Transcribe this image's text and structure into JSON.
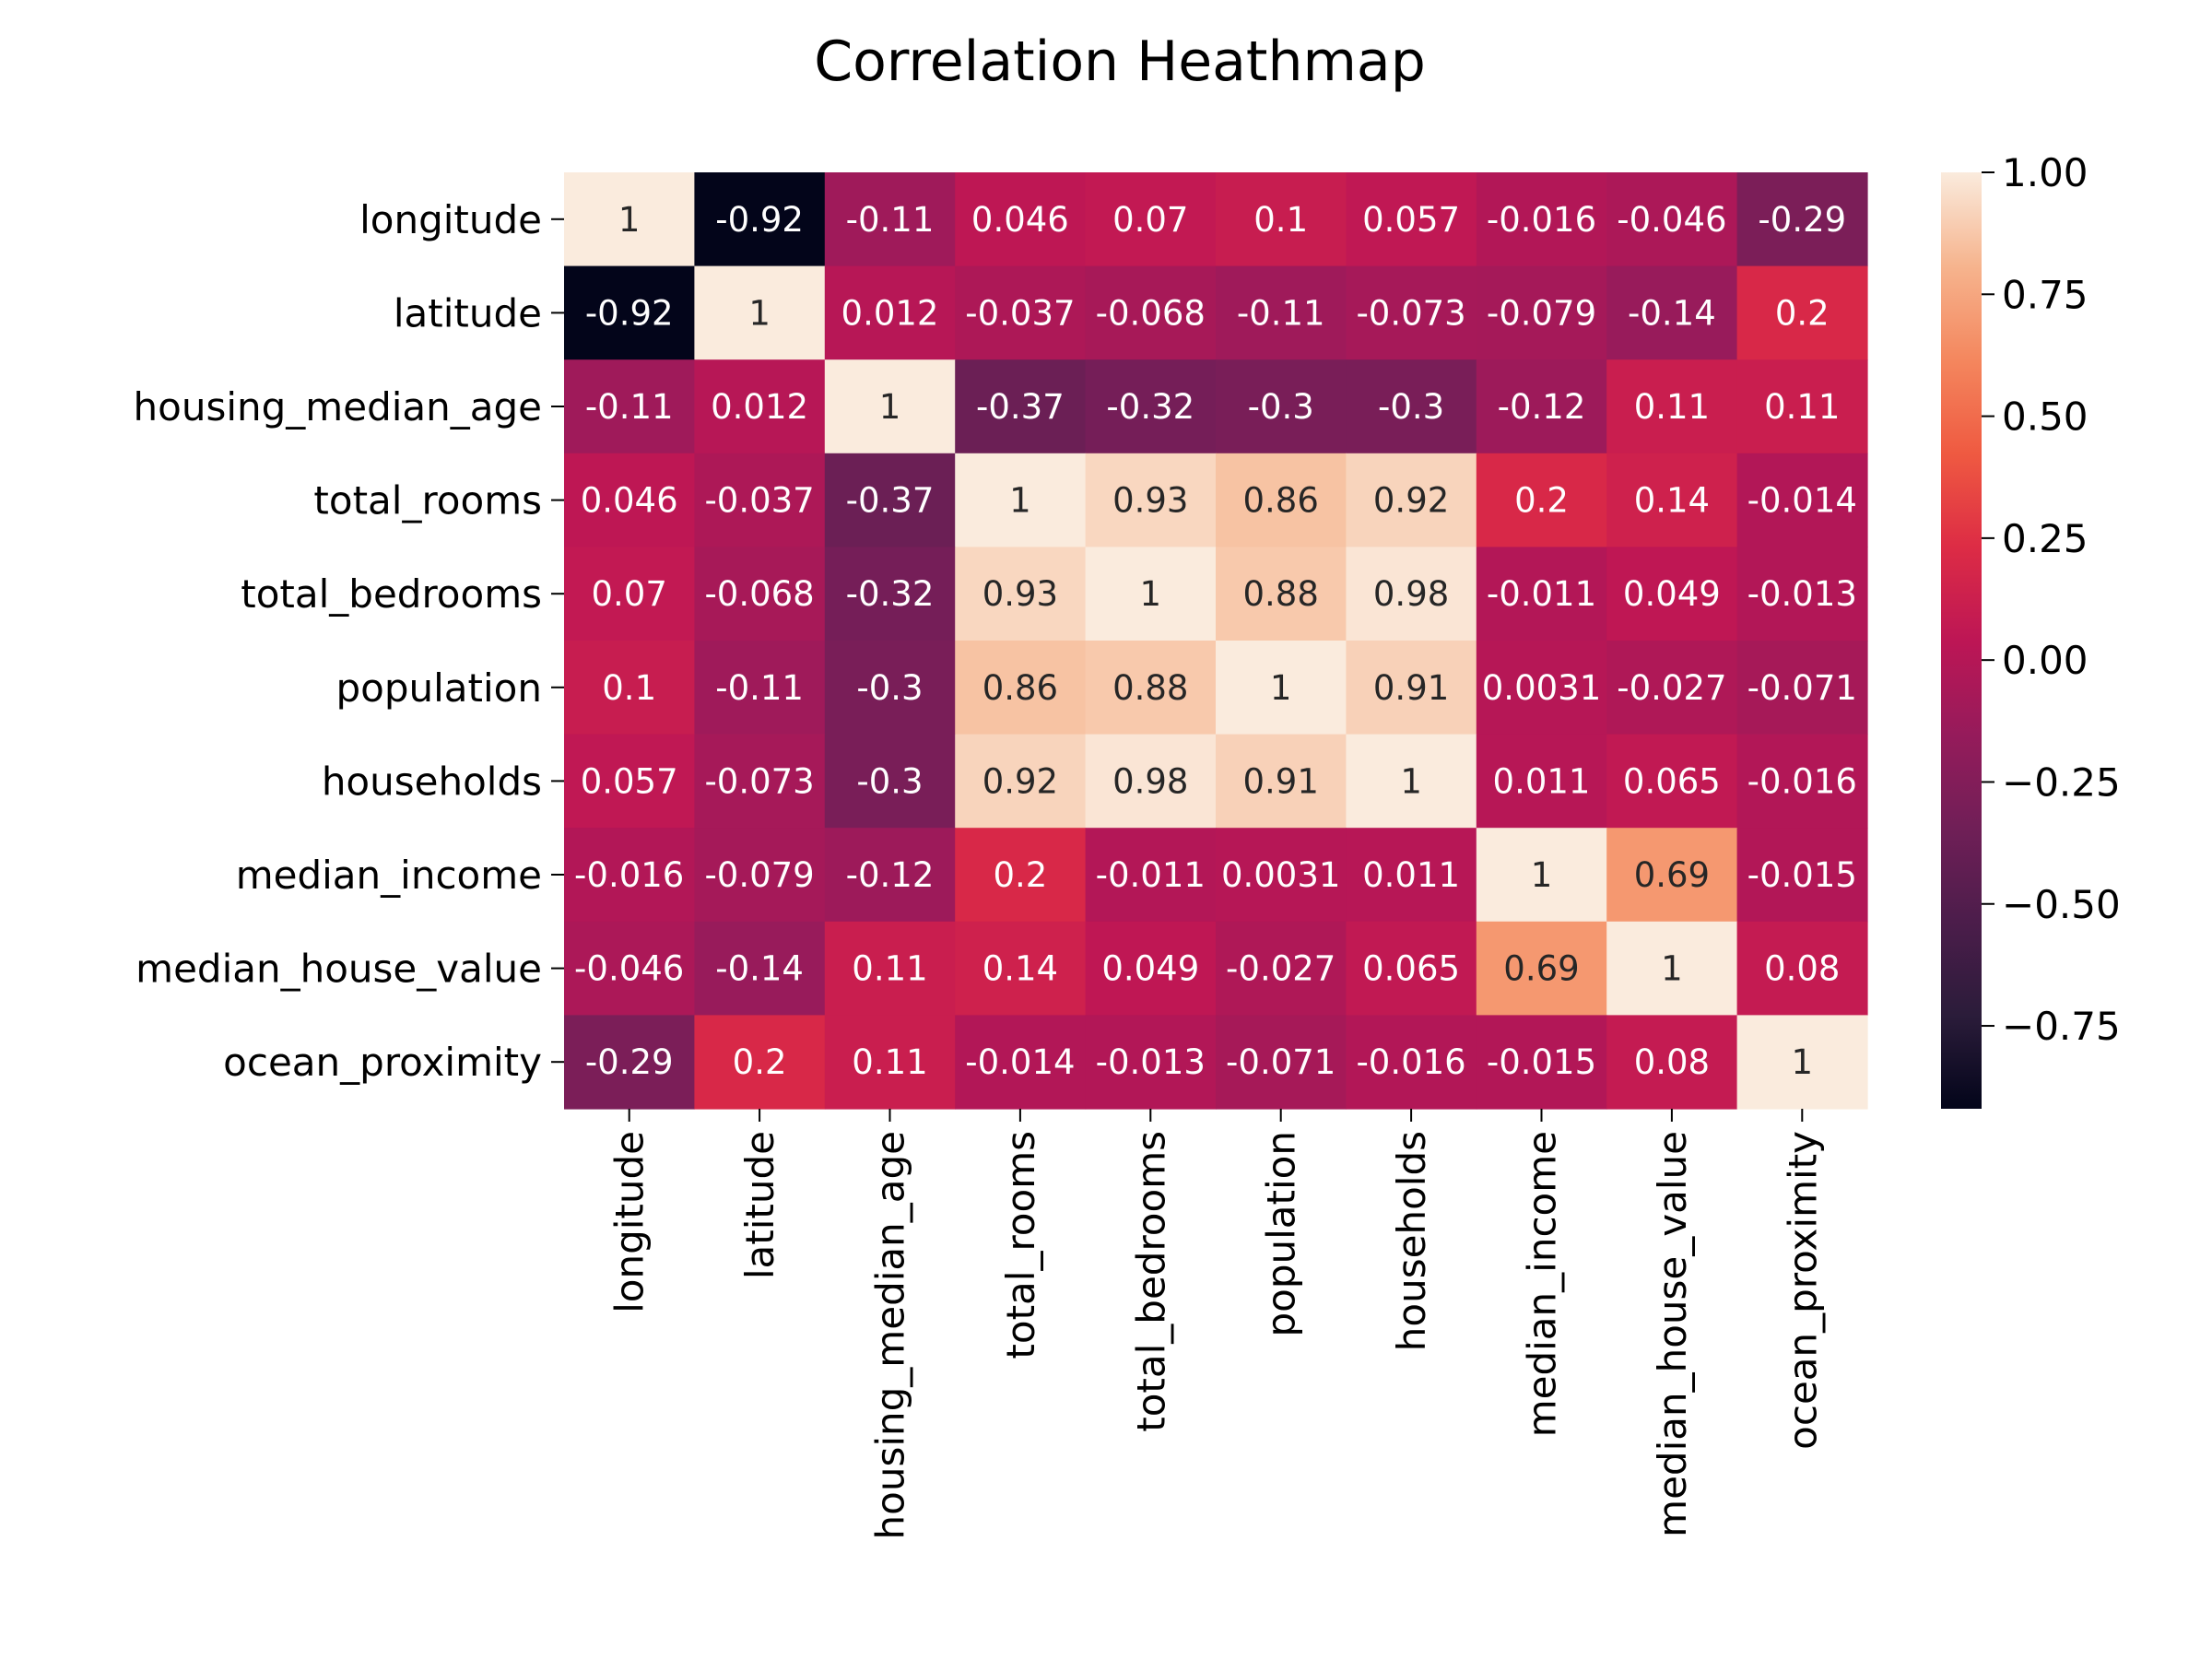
{
  "chart_data": {
    "type": "heatmap",
    "title": "Correlation Heathmap",
    "xlabel": "",
    "ylabel": "",
    "variables": [
      "longitude",
      "latitude",
      "housing_median_age",
      "total_rooms",
      "total_bedrooms",
      "population",
      "households",
      "median_income",
      "median_house_value",
      "ocean_proximity"
    ],
    "values": [
      [
        1,
        -0.92,
        -0.11,
        0.046,
        0.07,
        0.1,
        0.057,
        -0.016,
        -0.046,
        -0.29
      ],
      [
        -0.92,
        1,
        0.012,
        -0.037,
        -0.068,
        -0.11,
        -0.073,
        -0.079,
        -0.14,
        0.2
      ],
      [
        -0.11,
        0.012,
        1,
        -0.37,
        -0.32,
        -0.3,
        -0.3,
        -0.12,
        0.11,
        0.11
      ],
      [
        0.046,
        -0.037,
        -0.37,
        1,
        0.93,
        0.86,
        0.92,
        0.2,
        0.14,
        -0.014
      ],
      [
        0.07,
        -0.068,
        -0.32,
        0.93,
        1,
        0.88,
        0.98,
        -0.011,
        0.049,
        -0.013
      ],
      [
        0.1,
        -0.11,
        -0.3,
        0.86,
        0.88,
        1,
        0.91,
        0.0031,
        -0.027,
        -0.071
      ],
      [
        0.057,
        -0.073,
        -0.3,
        0.92,
        0.98,
        0.91,
        1,
        0.011,
        0.065,
        -0.016
      ],
      [
        -0.016,
        -0.079,
        -0.12,
        0.2,
        -0.011,
        0.0031,
        0.011,
        1,
        0.69,
        -0.015
      ],
      [
        -0.046,
        -0.14,
        0.11,
        0.14,
        0.049,
        -0.027,
        0.065,
        0.69,
        1,
        0.08
      ],
      [
        -0.29,
        0.2,
        0.11,
        -0.014,
        -0.013,
        -0.071,
        -0.016,
        -0.015,
        0.08,
        1
      ]
    ],
    "annotations": [
      [
        "1",
        "-0.92",
        "-0.11",
        "0.046",
        "0.07",
        "0.1",
        "0.057",
        "-0.016",
        "-0.046",
        "-0.29"
      ],
      [
        "-0.92",
        "1",
        "0.012",
        "-0.037",
        "-0.068",
        "-0.11",
        "-0.073",
        "-0.079",
        "-0.14",
        "0.2"
      ],
      [
        "-0.11",
        "0.012",
        "1",
        "-0.37",
        "-0.32",
        "-0.3",
        "-0.3",
        "-0.12",
        "0.11",
        "0.11"
      ],
      [
        "0.046",
        "-0.037",
        "-0.37",
        "1",
        "0.93",
        "0.86",
        "0.92",
        "0.2",
        "0.14",
        "-0.014"
      ],
      [
        "0.07",
        "-0.068",
        "-0.32",
        "0.93",
        "1",
        "0.88",
        "0.98",
        "-0.011",
        "0.049",
        "-0.013"
      ],
      [
        "0.1",
        "-0.11",
        "-0.3",
        "0.86",
        "0.88",
        "1",
        "0.91",
        "0.0031",
        "-0.027",
        "-0.071"
      ],
      [
        "0.057",
        "-0.073",
        "-0.3",
        "0.92",
        "0.98",
        "0.91",
        "1",
        "0.011",
        "0.065",
        "-0.016"
      ],
      [
        "-0.016",
        "-0.079",
        "-0.12",
        "0.2",
        "-0.011",
        "0.0031",
        "0.011",
        "1",
        "0.69",
        "-0.015"
      ],
      [
        "-0.046",
        "-0.14",
        "0.11",
        "0.14",
        "0.049",
        "-0.027",
        "0.065",
        "0.69",
        "1",
        "0.08"
      ],
      [
        "-0.29",
        "0.2",
        "0.11",
        "-0.014",
        "-0.013",
        "-0.071",
        "-0.016",
        "-0.015",
        "0.08",
        "1"
      ]
    ],
    "colorbar": {
      "vmin": -0.92,
      "vmax": 1.0,
      "ticks": [
        1.0,
        0.75,
        0.5,
        0.25,
        0.0,
        -0.25,
        -0.5,
        -0.75
      ],
      "tick_labels": [
        "1.00",
        "0.75",
        "0.50",
        "0.25",
        "0.00",
        "−0.25",
        "−0.50",
        "−0.75"
      ],
      "colormap": "rocket",
      "colormap_stops": [
        [
          0.0,
          "#03051a"
        ],
        [
          0.1,
          "#2b1c3a"
        ],
        [
          0.2,
          "#4c1d4b"
        ],
        [
          0.3,
          "#701f57"
        ],
        [
          0.4,
          "#961b5b"
        ],
        [
          0.5,
          "#bd1655"
        ],
        [
          0.6,
          "#dd2c45"
        ],
        [
          0.7,
          "#ef5a41"
        ],
        [
          0.8,
          "#f4875e"
        ],
        [
          0.9,
          "#f6b48e"
        ],
        [
          1.0,
          "#faebdd"
        ]
      ]
    },
    "grid": false,
    "legend": "colorbar-right"
  }
}
